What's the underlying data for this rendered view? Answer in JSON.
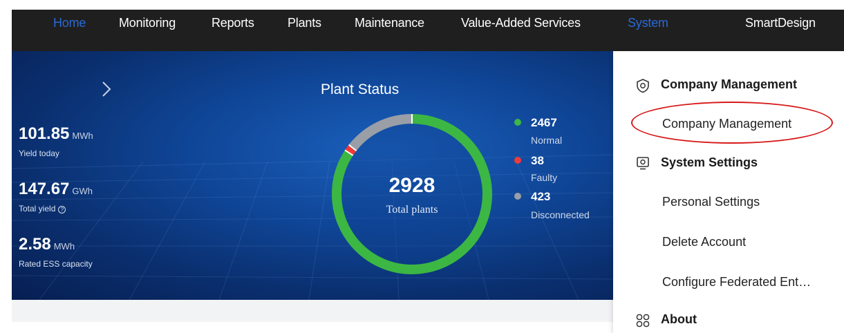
{
  "nav": {
    "items": [
      {
        "label": "Home",
        "active": true
      },
      {
        "label": "Monitoring"
      },
      {
        "label": "Reports"
      },
      {
        "label": "Plants"
      },
      {
        "label": "Maintenance"
      },
      {
        "label": "Value-Added Services"
      },
      {
        "label": "System",
        "active": true
      },
      {
        "label": "SmartDesign"
      }
    ]
  },
  "stats": {
    "yield_today": {
      "value": "101.85",
      "unit": "MWh",
      "label": "Yield today"
    },
    "total_yield": {
      "value": "147.67",
      "unit": "GWh",
      "label": "Total yield"
    },
    "ess_capacity": {
      "value": "2.58",
      "unit": "MWh",
      "label": "Rated ESS capacity"
    }
  },
  "plant_status": {
    "title": "Plant Status",
    "total": "2928",
    "total_label": "Total plants",
    "legend": [
      {
        "value": "2467",
        "label": "Normal",
        "color": "#3cb743"
      },
      {
        "value": "38",
        "label": "Faulty",
        "color": "#f03a3a"
      },
      {
        "value": "423",
        "label": "Disconnected",
        "color": "#9a9ea6"
      }
    ]
  },
  "chart_data": {
    "type": "pie",
    "variant": "donut",
    "title": "Plant Status",
    "categories": [
      "Normal",
      "Faulty",
      "Disconnected"
    ],
    "values": [
      2467,
      38,
      423
    ],
    "colors": [
      "#3cb743",
      "#f03a3a",
      "#9a9ea6"
    ],
    "legend_position": "right"
  },
  "dropdown": {
    "groups": [
      {
        "title": "Company Management",
        "icon": "shield-icon",
        "items": [
          "Company Management"
        ]
      },
      {
        "title": "System Settings",
        "icon": "monitor-icon",
        "items": [
          "Personal Settings",
          "Delete Account",
          "Configure Federated Ent…"
        ]
      },
      {
        "title": "About",
        "icon": "grid-icon",
        "items": []
      }
    ]
  },
  "colors": {
    "nav_bg": "#1f1f1f",
    "nav_active": "#2a6ad6",
    "highlight": "#d71919"
  }
}
